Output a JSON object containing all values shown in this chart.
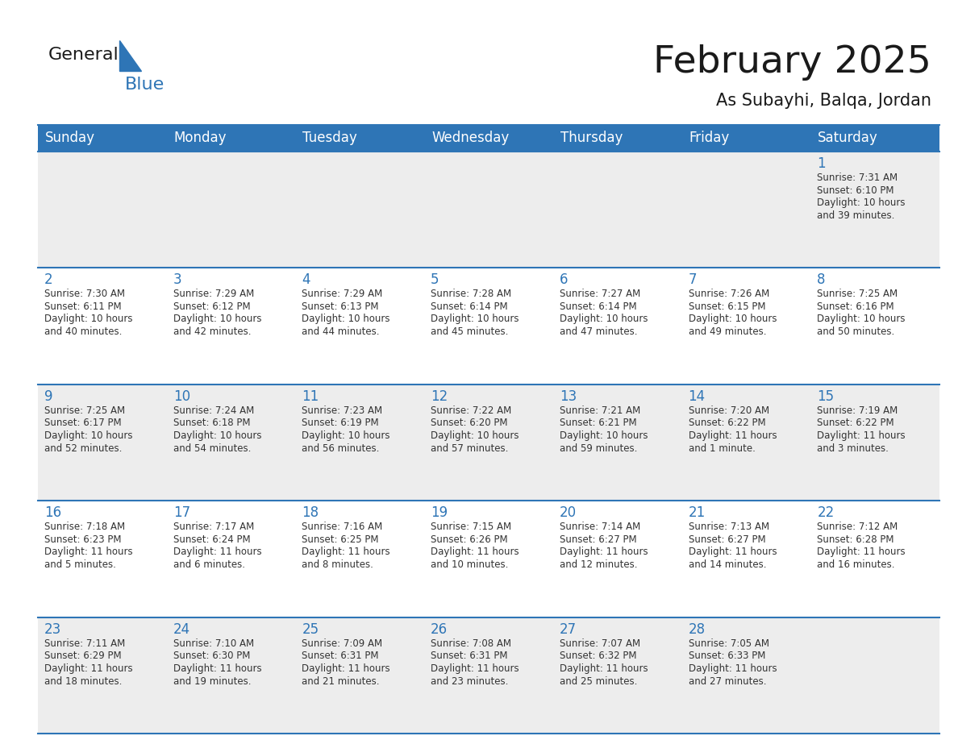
{
  "title": "February 2025",
  "subtitle": "As Subayhi, Balqa, Jordan",
  "days_of_week": [
    "Sunday",
    "Monday",
    "Tuesday",
    "Wednesday",
    "Thursday",
    "Friday",
    "Saturday"
  ],
  "header_bg": "#2E75B6",
  "header_text": "#FFFFFF",
  "cell_bg_odd": "#EDEDED",
  "cell_bg_even": "#FFFFFF",
  "line_color": "#2E75B6",
  "text_color": "#333333",
  "day_num_color": "#2E75B6",
  "logo_black": "#1a1a1a",
  "logo_blue": "#2E75B6",
  "title_fontsize": 34,
  "subtitle_fontsize": 15,
  "header_fontsize": 12,
  "day_num_fontsize": 12,
  "cell_text_fontsize": 8.5,
  "calendar_data": [
    [
      {
        "day": null,
        "sunrise": null,
        "sunset": null,
        "daylight": null
      },
      {
        "day": null,
        "sunrise": null,
        "sunset": null,
        "daylight": null
      },
      {
        "day": null,
        "sunrise": null,
        "sunset": null,
        "daylight": null
      },
      {
        "day": null,
        "sunrise": null,
        "sunset": null,
        "daylight": null
      },
      {
        "day": null,
        "sunrise": null,
        "sunset": null,
        "daylight": null
      },
      {
        "day": null,
        "sunrise": null,
        "sunset": null,
        "daylight": null
      },
      {
        "day": 1,
        "sunrise": "7:31 AM",
        "sunset": "6:10 PM",
        "daylight": "10 hours\nand 39 minutes."
      }
    ],
    [
      {
        "day": 2,
        "sunrise": "7:30 AM",
        "sunset": "6:11 PM",
        "daylight": "10 hours\nand 40 minutes."
      },
      {
        "day": 3,
        "sunrise": "7:29 AM",
        "sunset": "6:12 PM",
        "daylight": "10 hours\nand 42 minutes."
      },
      {
        "day": 4,
        "sunrise": "7:29 AM",
        "sunset": "6:13 PM",
        "daylight": "10 hours\nand 44 minutes."
      },
      {
        "day": 5,
        "sunrise": "7:28 AM",
        "sunset": "6:14 PM",
        "daylight": "10 hours\nand 45 minutes."
      },
      {
        "day": 6,
        "sunrise": "7:27 AM",
        "sunset": "6:14 PM",
        "daylight": "10 hours\nand 47 minutes."
      },
      {
        "day": 7,
        "sunrise": "7:26 AM",
        "sunset": "6:15 PM",
        "daylight": "10 hours\nand 49 minutes."
      },
      {
        "day": 8,
        "sunrise": "7:25 AM",
        "sunset": "6:16 PM",
        "daylight": "10 hours\nand 50 minutes."
      }
    ],
    [
      {
        "day": 9,
        "sunrise": "7:25 AM",
        "sunset": "6:17 PM",
        "daylight": "10 hours\nand 52 minutes."
      },
      {
        "day": 10,
        "sunrise": "7:24 AM",
        "sunset": "6:18 PM",
        "daylight": "10 hours\nand 54 minutes."
      },
      {
        "day": 11,
        "sunrise": "7:23 AM",
        "sunset": "6:19 PM",
        "daylight": "10 hours\nand 56 minutes."
      },
      {
        "day": 12,
        "sunrise": "7:22 AM",
        "sunset": "6:20 PM",
        "daylight": "10 hours\nand 57 minutes."
      },
      {
        "day": 13,
        "sunrise": "7:21 AM",
        "sunset": "6:21 PM",
        "daylight": "10 hours\nand 59 minutes."
      },
      {
        "day": 14,
        "sunrise": "7:20 AM",
        "sunset": "6:22 PM",
        "daylight": "11 hours\nand 1 minute."
      },
      {
        "day": 15,
        "sunrise": "7:19 AM",
        "sunset": "6:22 PM",
        "daylight": "11 hours\nand 3 minutes."
      }
    ],
    [
      {
        "day": 16,
        "sunrise": "7:18 AM",
        "sunset": "6:23 PM",
        "daylight": "11 hours\nand 5 minutes."
      },
      {
        "day": 17,
        "sunrise": "7:17 AM",
        "sunset": "6:24 PM",
        "daylight": "11 hours\nand 6 minutes."
      },
      {
        "day": 18,
        "sunrise": "7:16 AM",
        "sunset": "6:25 PM",
        "daylight": "11 hours\nand 8 minutes."
      },
      {
        "day": 19,
        "sunrise": "7:15 AM",
        "sunset": "6:26 PM",
        "daylight": "11 hours\nand 10 minutes."
      },
      {
        "day": 20,
        "sunrise": "7:14 AM",
        "sunset": "6:27 PM",
        "daylight": "11 hours\nand 12 minutes."
      },
      {
        "day": 21,
        "sunrise": "7:13 AM",
        "sunset": "6:27 PM",
        "daylight": "11 hours\nand 14 minutes."
      },
      {
        "day": 22,
        "sunrise": "7:12 AM",
        "sunset": "6:28 PM",
        "daylight": "11 hours\nand 16 minutes."
      }
    ],
    [
      {
        "day": 23,
        "sunrise": "7:11 AM",
        "sunset": "6:29 PM",
        "daylight": "11 hours\nand 18 minutes."
      },
      {
        "day": 24,
        "sunrise": "7:10 AM",
        "sunset": "6:30 PM",
        "daylight": "11 hours\nand 19 minutes."
      },
      {
        "day": 25,
        "sunrise": "7:09 AM",
        "sunset": "6:31 PM",
        "daylight": "11 hours\nand 21 minutes."
      },
      {
        "day": 26,
        "sunrise": "7:08 AM",
        "sunset": "6:31 PM",
        "daylight": "11 hours\nand 23 minutes."
      },
      {
        "day": 27,
        "sunrise": "7:07 AM",
        "sunset": "6:32 PM",
        "daylight": "11 hours\nand 25 minutes."
      },
      {
        "day": 28,
        "sunrise": "7:05 AM",
        "sunset": "6:33 PM",
        "daylight": "11 hours\nand 27 minutes."
      },
      {
        "day": null,
        "sunrise": null,
        "sunset": null,
        "daylight": null
      }
    ]
  ]
}
